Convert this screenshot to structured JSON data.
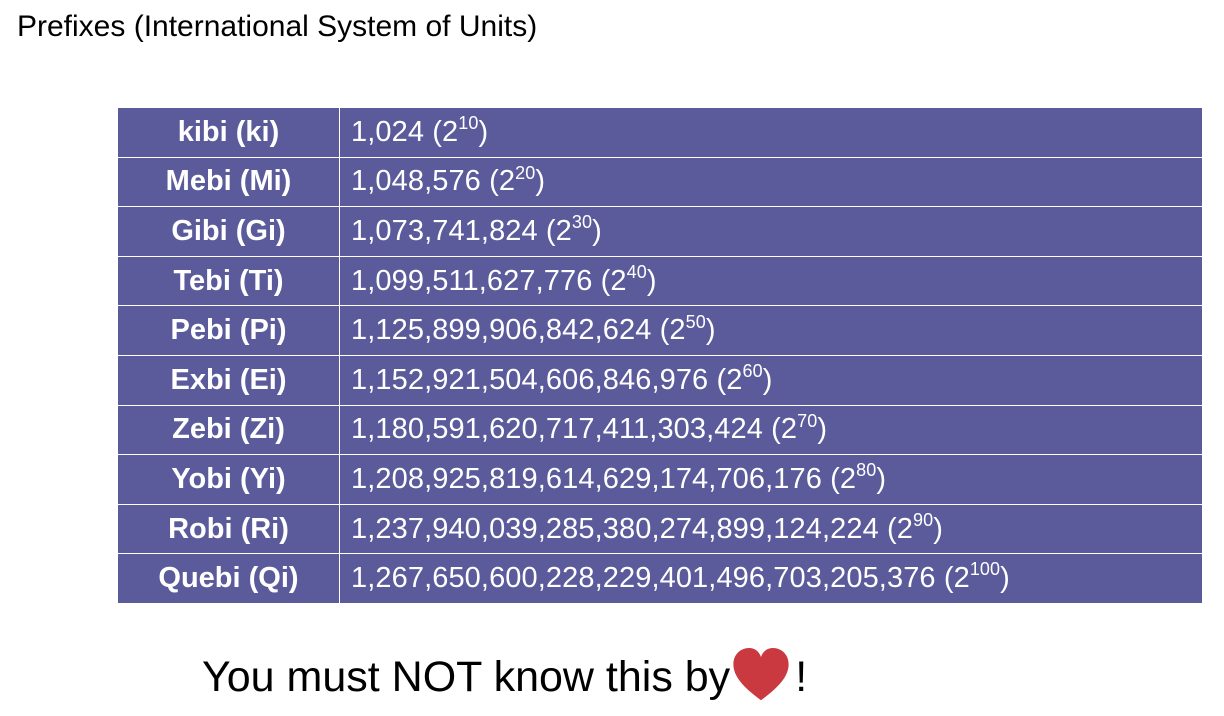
{
  "title": "Prefixes (International System of Units)",
  "table": {
    "rows": [
      {
        "name": "kibi (ki)",
        "value": "1,024",
        "exponent": "10"
      },
      {
        "name": "Mebi (Mi)",
        "value": "1,048,576",
        "exponent": "20"
      },
      {
        "name": "Gibi (Gi)",
        "value": "1,073,741,824",
        "exponent": "30"
      },
      {
        "name": "Tebi (Ti)",
        "value": "1,099,511,627,776",
        "exponent": "40"
      },
      {
        "name": "Pebi (Pi)",
        "value": "1,125,899,906,842,624",
        "exponent": "50"
      },
      {
        "name": "Exbi (Ei)",
        "value": "1,152,921,504,606,846,976",
        "exponent": "60"
      },
      {
        "name": "Zebi (Zi)",
        "value": "1,180,591,620,717,411,303,424",
        "exponent": "70"
      },
      {
        "name": "Yobi (Yi)",
        "value": "1,208,925,819,614,629,174,706,176",
        "exponent": "80"
      },
      {
        "name": "Robi (Ri)",
        "value": "1,237,940,039,285,380,274,899,124,224",
        "exponent": "90"
      },
      {
        "name": "Quebi (Qi)",
        "value": "1,267,650,600,228,229,401,496,703,205,376",
        "exponent": "100"
      }
    ]
  },
  "footer": {
    "text_before": "You must NOT know this by",
    "icon": "heart-icon",
    "text_after": "!"
  },
  "colors": {
    "table_background": "#5b5a9b",
    "table_text": "#ffffff",
    "heart": "#c9393f"
  }
}
